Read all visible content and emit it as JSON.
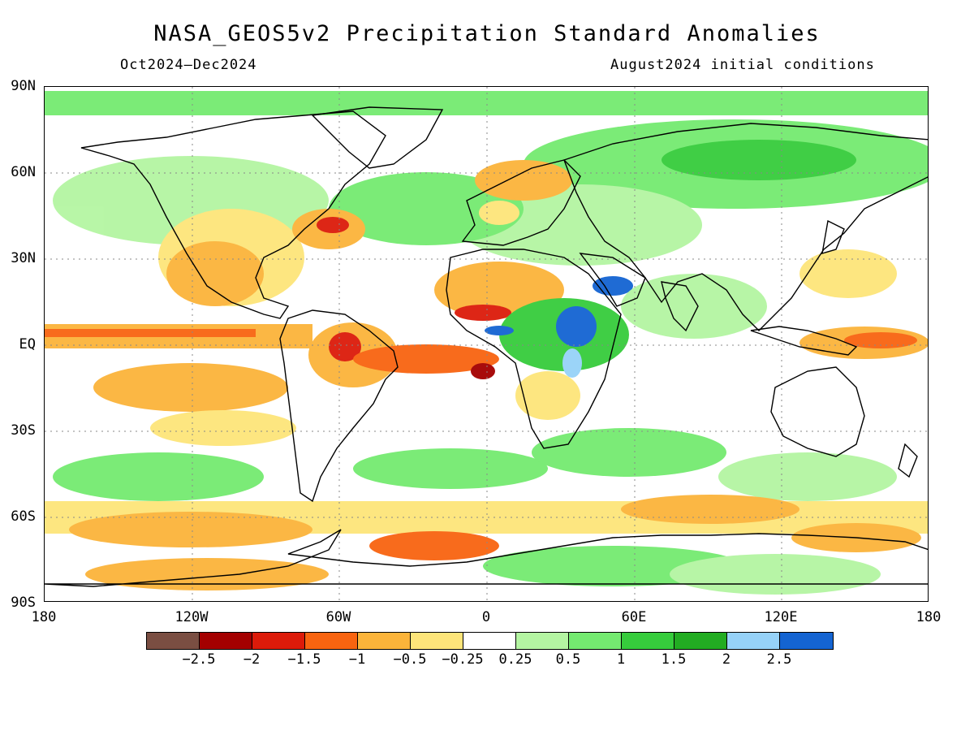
{
  "title": "NASA_GEOS5v2 Precipitation Standard Anomalies",
  "period": "Oct2024–Dec2024",
  "initial_conditions": "August2024 initial conditions",
  "y_axis_labels": [
    "90N",
    "60N",
    "30N",
    "EQ",
    "30S",
    "60S",
    "90S"
  ],
  "x_axis_labels": [
    "180",
    "120W",
    "60W",
    "0",
    "60E",
    "120E",
    "180"
  ],
  "colorbar": {
    "colors": [
      "#7a4e42",
      "#a40000",
      "#dc1b0a",
      "#f86410",
      "#fbb43a",
      "#fde57a",
      "#ffffff",
      "#b4f5a2",
      "#74ea70",
      "#36cc3c",
      "#22ac22",
      "#96d2f8",
      "#1464d2"
    ],
    "labels": [
      "−2.5",
      "−2",
      "−1.5",
      "−1",
      "−0.5",
      "−0.25",
      "0.25",
      "0.5",
      "1",
      "1.5",
      "2",
      "2.5"
    ]
  }
}
